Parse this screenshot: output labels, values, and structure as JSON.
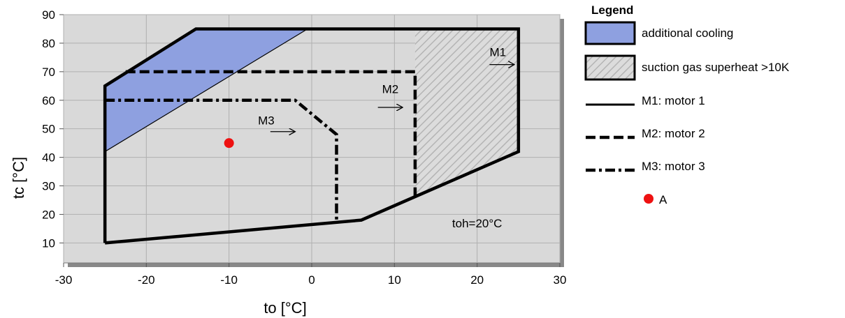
{
  "chart_data": {
    "type": "line",
    "title": "",
    "xlabel": "to [°C]",
    "ylabel": "tc [°C]",
    "xlim": [
      -30,
      30
    ],
    "ylim": [
      3,
      90
    ],
    "x_ticks": [
      -30,
      -20,
      -10,
      0,
      10,
      20,
      30
    ],
    "y_ticks": [
      10,
      20,
      30,
      40,
      50,
      60,
      70,
      80,
      90
    ],
    "grid": true,
    "legend_position": "right",
    "background_color": "#d9d9d9",
    "legend": {
      "title": "Legend",
      "items": [
        {
          "label": "additional cooling",
          "kind": "fill",
          "color": "#8ea0e0"
        },
        {
          "label": "suction gas superheat >10K",
          "kind": "hatch",
          "color": "#c8c8c8"
        },
        {
          "label": "M1: motor 1",
          "kind": "solid"
        },
        {
          "label": "M2: motor 2",
          "kind": "dashed"
        },
        {
          "label": "M3: motor 3",
          "kind": "dashdot"
        },
        {
          "label": "A",
          "kind": "point",
          "color": "#ee1111"
        }
      ]
    },
    "series": [
      {
        "name": "M1: motor 1",
        "style": "solid",
        "x": [
          -25,
          -25,
          -14,
          25,
          25,
          6,
          -25
        ],
        "y": [
          10,
          65,
          85,
          85,
          42,
          18,
          10
        ]
      },
      {
        "name": "M2: motor 2",
        "style": "dashed",
        "x": [
          -22.5,
          12.5,
          12.5
        ],
        "y": [
          70,
          70,
          26
        ]
      },
      {
        "name": "M3: motor 3",
        "style": "dashdot",
        "x": [
          -25,
          -2,
          3,
          3
        ],
        "y": [
          60,
          60,
          48,
          17
        ]
      }
    ],
    "regions": [
      {
        "name": "additional cooling",
        "fill": "#8ea0e0",
        "x": [
          -25,
          -25,
          -14,
          -0.5,
          -25
        ],
        "y": [
          42,
          65,
          85,
          85,
          42
        ]
      },
      {
        "name": "suction gas superheat >10K",
        "fill": "hatch",
        "x": [
          12.5,
          25,
          25,
          12.5
        ],
        "y": [
          85,
          85,
          42,
          26
        ]
      }
    ],
    "points": [
      {
        "name": "A",
        "x": -10,
        "y": 45,
        "color": "#ee1111"
      }
    ],
    "annotations": [
      {
        "text": "M1",
        "x": 22.5,
        "y": 75.5
      },
      {
        "text": "M2",
        "x": 9.5,
        "y": 62.5
      },
      {
        "text": "M3",
        "x": -5.5,
        "y": 51.5
      },
      {
        "text": "toh=20°C",
        "x": 20,
        "y": 15.5
      }
    ],
    "arrows": [
      {
        "x1": 21.5,
        "y1": 72.5,
        "x2": 24.5,
        "y2": 72.5
      },
      {
        "x1": 8,
        "y1": 57.5,
        "x2": 11,
        "y2": 57.5
      },
      {
        "x1": -5,
        "y1": 49,
        "x2": -2,
        "y2": 49
      }
    ]
  }
}
